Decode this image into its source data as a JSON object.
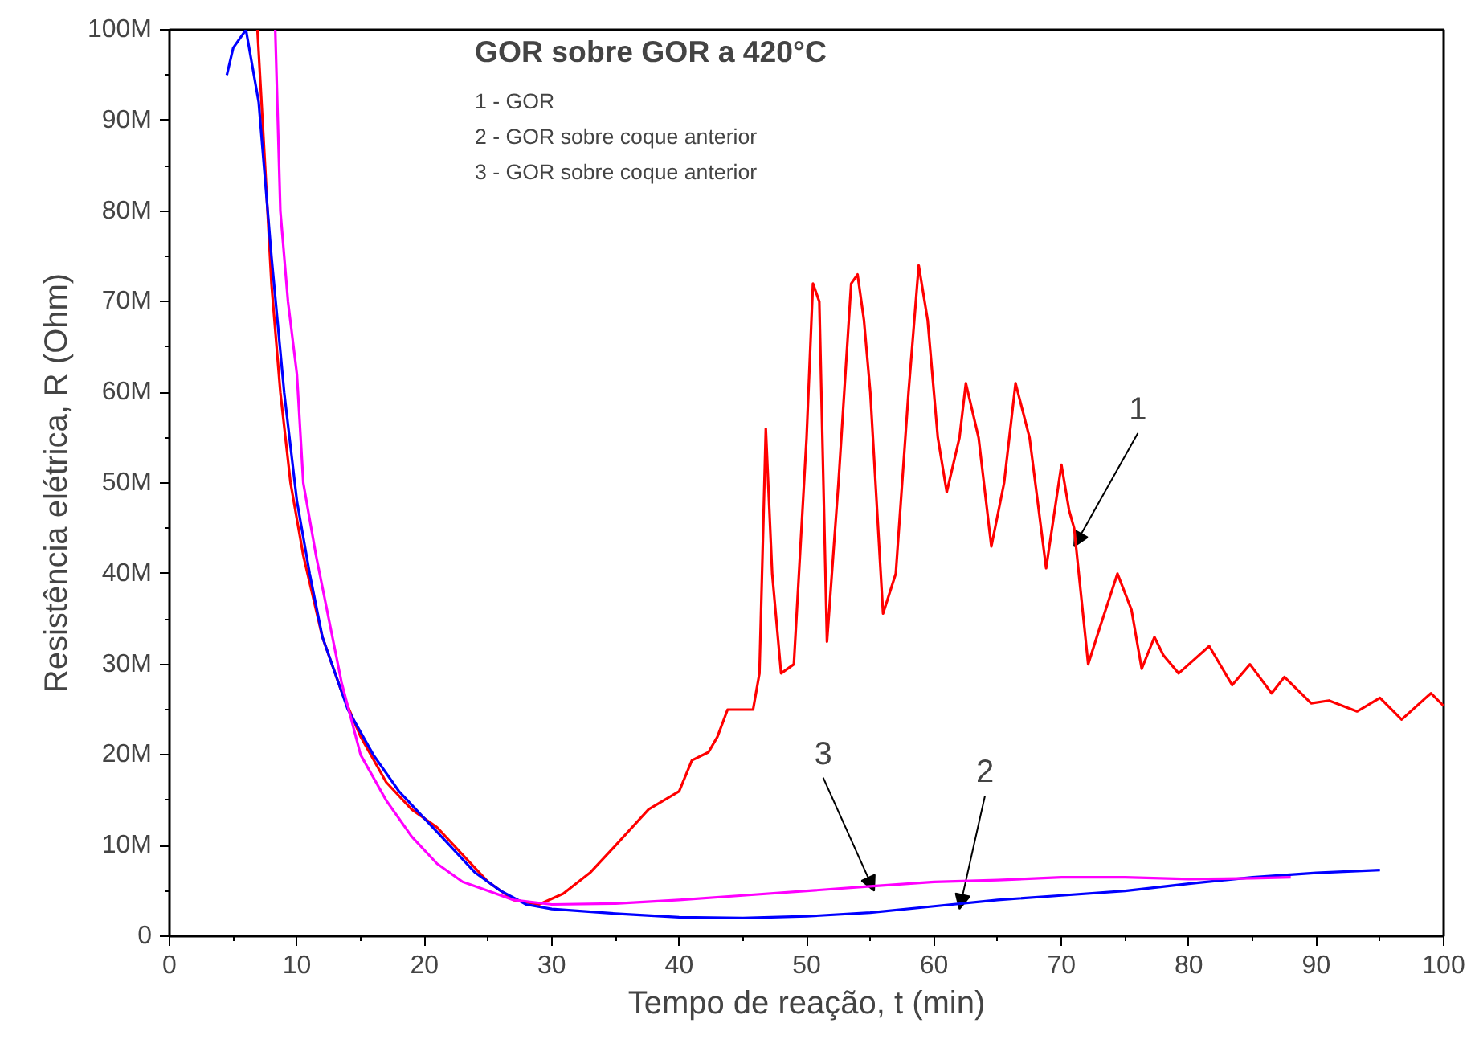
{
  "chart_data": {
    "type": "line",
    "title": "GOR sobre GOR a 420°C",
    "xlabel": "Tempo de reação, t (min)",
    "ylabel": "Resistência elétrica, R (Ohm)",
    "xlim": [
      0,
      100
    ],
    "xticks": [
      0,
      10,
      20,
      30,
      40,
      50,
      60,
      70,
      80,
      90,
      100
    ],
    "ylim": [
      0,
      100
    ],
    "yticks": [
      {
        "value": 0,
        "label": "0"
      },
      {
        "value": 10,
        "label": "10M"
      },
      {
        "value": 20,
        "label": "20M"
      },
      {
        "value": 30,
        "label": "30M"
      },
      {
        "value": 40,
        "label": "40M"
      },
      {
        "value": 50,
        "label": "50M"
      },
      {
        "value": 60,
        "label": "60M"
      },
      {
        "value": 70,
        "label": "70M"
      },
      {
        "value": 80,
        "label": "80M"
      },
      {
        "value": 90,
        "label": "90M"
      },
      {
        "value": 100,
        "label": "100M"
      }
    ],
    "grid": false,
    "marker": "none",
    "line_style": "solid",
    "series": [
      {
        "color": "#ff0000",
        "x": [
          6.9,
          7.5,
          8,
          8.7,
          9.5,
          10.5,
          12,
          13.5,
          15,
          17,
          19,
          21,
          23,
          25,
          27,
          29,
          30.9,
          33,
          35,
          37.6,
          40,
          41,
          42.3,
          43,
          43.8,
          45.8,
          46.3,
          46.8,
          47.3,
          48,
          49,
          50,
          50.5,
          51,
          51.6,
          52.5,
          53.5,
          54,
          54.5,
          55,
          56,
          57,
          58,
          58.8,
          59.5,
          60.3,
          61,
          62,
          62.5,
          63.5,
          64.5,
          65.5,
          66.4,
          67.5,
          68.8,
          70,
          70.6,
          71,
          72.1,
          73,
          74.4,
          75.5,
          76.3,
          77.3,
          78,
          79.2,
          80,
          81.6,
          83.4,
          84.8,
          86.5,
          87.5,
          89.6,
          91,
          93.2,
          95,
          96.7,
          99,
          100
        ],
        "values": [
          100,
          85,
          72,
          60,
          50,
          42,
          33,
          27,
          22,
          17,
          14,
          12,
          9,
          6,
          4,
          3.5,
          4.7,
          7,
          10,
          14,
          16,
          19.4,
          20.3,
          22,
          25,
          25,
          29,
          56,
          40,
          29,
          30,
          55,
          72,
          70,
          32.5,
          50,
          72,
          73,
          68,
          60,
          35.6,
          40,
          60,
          74,
          68,
          55,
          49,
          55,
          61,
          55,
          43,
          50,
          61,
          55,
          40.6,
          52,
          47,
          45,
          30,
          34,
          40,
          36,
          29.5,
          33,
          31,
          29,
          30,
          32,
          27.7,
          30,
          26.8,
          28.6,
          25.7,
          26,
          24.8,
          26.3,
          23.9,
          26.8,
          25.4
        ]
      },
      {
        "color": "#0000ff",
        "x": [
          4.5,
          5,
          6,
          7,
          8,
          9,
          10,
          11,
          12,
          14,
          16,
          18,
          20,
          22,
          24,
          26,
          28,
          30,
          35,
          40,
          45,
          50,
          55,
          60,
          65,
          70,
          75,
          80,
          85,
          90,
          95
        ],
        "values": [
          95,
          98,
          100,
          92,
          75,
          60,
          48,
          40,
          33,
          25,
          20,
          16,
          13,
          10,
          7,
          5,
          3.5,
          3,
          2.5,
          2.1,
          2,
          2.2,
          2.6,
          3.3,
          4,
          4.5,
          5,
          5.8,
          6.5,
          7,
          7.3
        ]
      },
      {
        "color": "#ff00ff",
        "x": [
          8.3,
          8.7,
          9.3,
          10,
          10.5,
          11.5,
          12.5,
          13.5,
          15,
          17,
          19,
          21,
          23,
          25,
          27,
          30,
          35,
          40,
          45,
          50,
          55,
          60,
          65,
          70,
          75,
          80,
          85,
          88
        ],
        "values": [
          100,
          80,
          70,
          62,
          50,
          42,
          35,
          28,
          20,
          15,
          11,
          8,
          6,
          5,
          4,
          3.5,
          3.6,
          4,
          4.5,
          5,
          5.5,
          6,
          6.2,
          6.5,
          6.5,
          6.3,
          6.4,
          6.5
        ]
      }
    ],
    "annotations": [
      "1 - GOR",
      "2 - GOR sobre coque anterior",
      "3 - GOR sobre coque anterior",
      {
        "text": "1",
        "x": 71,
        "y": 43
      },
      {
        "text": "2",
        "x": 62,
        "y": 3
      },
      {
        "text": "3",
        "x": 55.3,
        "y": 5
      }
    ]
  }
}
